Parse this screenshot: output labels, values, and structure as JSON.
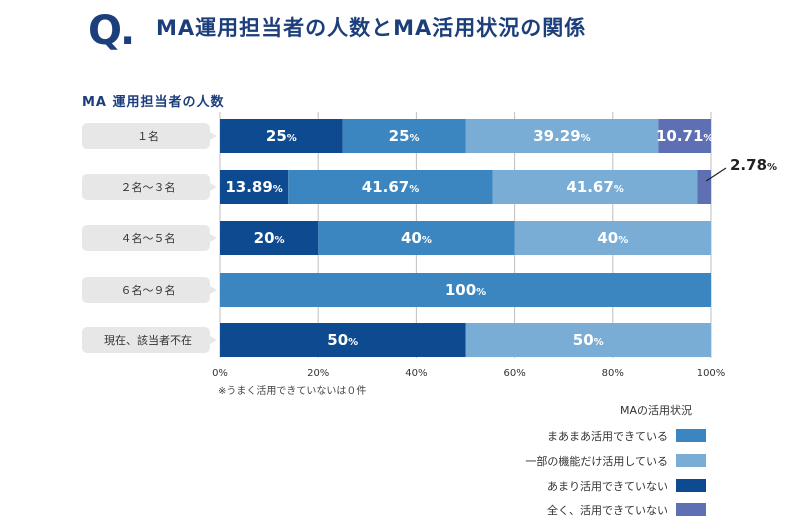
{
  "header": {
    "q_mark": "Q.",
    "title": "MA運用担当者の人数とMA活用状況の関係"
  },
  "note": "※うまく活用できていないは０件",
  "colors": {
    "full": "#0e4a8f",
    "mostly": "#3b86c0",
    "partial": "#79add5",
    "none": "#5f6fb3",
    "label_bg": "#e7e7e7",
    "grid": "#bfbfbf"
  },
  "chart_data": {
    "type": "bar",
    "orientation": "horizontal",
    "stacked": true,
    "title": "MA 運用担当者の人数",
    "categories": [
      "１名",
      "２名〜３名",
      "４名〜５名",
      "６名〜９名",
      "現在、該当者不在"
    ],
    "series": [
      {
        "name": "あまり活用できていない",
        "color_key": "full",
        "values": [
          25,
          13.89,
          20,
          0,
          50
        ],
        "labels": [
          "25%",
          "13.89%",
          "20%",
          "",
          "50%"
        ]
      },
      {
        "name": "まあまあ活用できている",
        "color_key": "mostly",
        "values": [
          25,
          41.67,
          40,
          100,
          0
        ],
        "labels": [
          "25%",
          "41.67%",
          "40%",
          "100%",
          ""
        ]
      },
      {
        "name": "一部の機能だけ活用している",
        "color_key": "partial",
        "values": [
          39.29,
          41.67,
          40,
          0,
          50
        ],
        "labels": [
          "39.29%",
          "41.67%",
          "40%",
          "",
          "50%"
        ]
      },
      {
        "name": "全く、活用できていない",
        "color_key": "none",
        "values": [
          10.71,
          2.78,
          0,
          0,
          0
        ],
        "labels": [
          "10.71%",
          "2.78%",
          "",
          "",
          ""
        ]
      }
    ],
    "callout": {
      "category_index": 1,
      "series_index": 3,
      "text": "2.78%"
    },
    "xlim": [
      0,
      100
    ],
    "xticks": [
      0,
      20,
      40,
      60,
      80,
      100
    ],
    "xtick_labels": [
      "0%",
      "20%",
      "40%",
      "60%",
      "80%",
      "100%"
    ],
    "grid": true,
    "legend": {
      "title": "MAの活用状況",
      "placement": "bottom-right",
      "items": [
        {
          "label": "まあまあ活用できている",
          "color_key": "mostly"
        },
        {
          "label": "一部の機能だけ活用している",
          "color_key": "partial"
        },
        {
          "label": "あまり活用できていない",
          "color_key": "full"
        },
        {
          "label": "全く、活用できていない",
          "color_key": "none"
        }
      ]
    }
  }
}
